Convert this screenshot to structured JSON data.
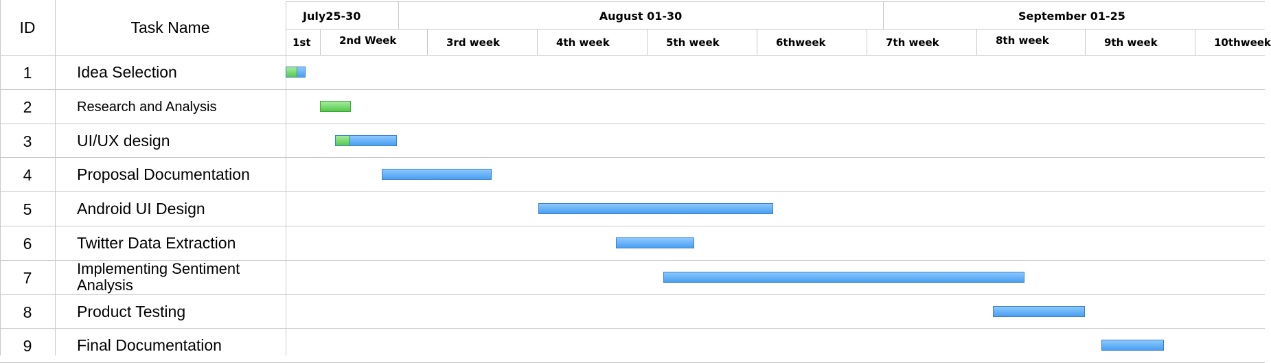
{
  "table": {
    "id_header": "ID",
    "name_header": "Task Name"
  },
  "timeline": {
    "months": [
      "July25-30",
      "August 01-30",
      "September 01-25"
    ],
    "weeks": [
      "1st",
      "2nd Week",
      "3rd week",
      "4th week",
      "5th week",
      "6thweek",
      "7th week",
      "8th week",
      "9th week",
      "10thweek"
    ]
  },
  "colors": {
    "planned": "#4a9ff0",
    "completed": "#54c94c",
    "grid": "#c9c9c9"
  },
  "chart_data": {
    "type": "gantt",
    "x_unit": "week",
    "xlim": [
      0,
      10
    ],
    "tasks": [
      {
        "id": "1",
        "name": "Idea Selection",
        "start": 0.0,
        "end": 0.58,
        "completed_until": 0.3
      },
      {
        "id": "2",
        "name": "Research and Analysis",
        "start": 1.0,
        "end": 1.29,
        "completed_until": 1.29
      },
      {
        "id": "3",
        "name": "UI/UX design",
        "start": 1.14,
        "end": 1.72,
        "completed_until": 1.26
      },
      {
        "id": "4",
        "name": "Proposal Documentation",
        "start": 1.58,
        "end": 2.59,
        "completed_until": null
      },
      {
        "id": "5",
        "name": "Android UI Design",
        "start": 3.01,
        "end": 5.15,
        "completed_until": null
      },
      {
        "id": "6",
        "name": "Twitter Data Extraction",
        "start": 3.72,
        "end": 4.43,
        "completed_until": null
      },
      {
        "id": "7",
        "name": "Implementing Sentiment Analysis",
        "start": 4.15,
        "end": 7.44,
        "completed_until": null
      },
      {
        "id": "8",
        "name": "Product Testing",
        "start": 7.15,
        "end": 8.0,
        "completed_until": null
      },
      {
        "id": "9",
        "name": "Final Documentation",
        "start": 8.15,
        "end": 8.72,
        "completed_until": null
      }
    ]
  }
}
